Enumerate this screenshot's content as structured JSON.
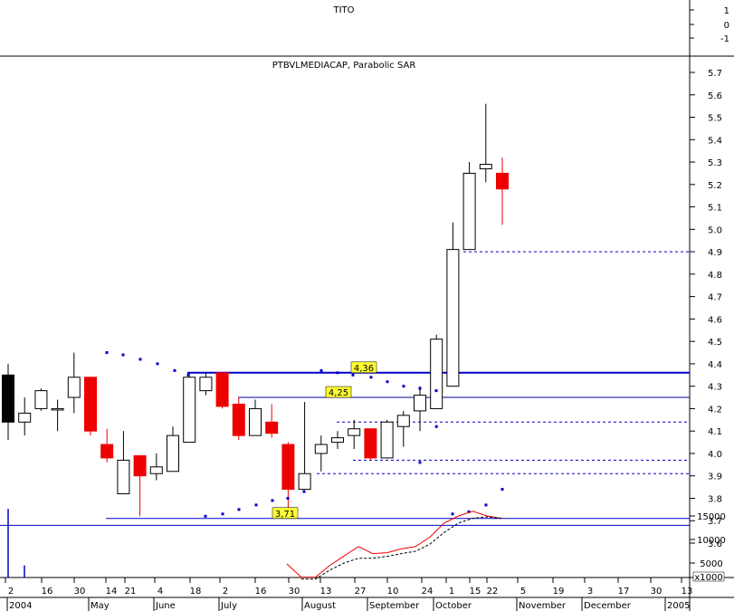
{
  "top_panel": {
    "title": "TITO",
    "axis_labels": [
      "1",
      "0",
      "-1"
    ]
  },
  "chart_data": [
    {
      "type": "candlestick",
      "title": "PTBVLMEDIACAP, Parabolic SAR",
      "ylim": [
        3.55,
        5.75
      ],
      "y_ticks": [
        "5.7",
        "5.6",
        "5.5",
        "5.4",
        "5.3",
        "5.2",
        "5.1",
        "5.0",
        "4.9",
        "4.8",
        "4.7",
        "4.6",
        "4.5",
        "4.4",
        "4.3",
        "4.2",
        "4.1",
        "4.0",
        "3.9",
        "3.8",
        "3.7",
        "3.6"
      ],
      "candles": [
        {
          "o": 4.35,
          "h": 4.4,
          "l": 4.06,
          "c": 4.14
        },
        {
          "o": 4.14,
          "h": 4.25,
          "l": 4.08,
          "c": 4.18
        },
        {
          "o": 4.2,
          "h": 4.29,
          "l": 4.19,
          "c": 4.28
        },
        {
          "o": 4.2,
          "h": 4.24,
          "l": 4.1,
          "c": 4.2
        },
        {
          "o": 4.25,
          "h": 4.45,
          "l": 4.18,
          "c": 4.34
        },
        {
          "o": 4.34,
          "h": 4.34,
          "l": 4.08,
          "c": 4.1
        },
        {
          "o": 4.04,
          "h": 4.11,
          "l": 3.96,
          "c": 3.98
        },
        {
          "o": 3.82,
          "h": 4.1,
          "l": 3.82,
          "c": 3.97
        },
        {
          "o": 3.99,
          "h": 3.99,
          "l": 3.72,
          "c": 3.9
        },
        {
          "o": 3.91,
          "h": 4.0,
          "l": 3.88,
          "c": 3.94
        },
        {
          "o": 3.92,
          "h": 4.12,
          "l": 3.92,
          "c": 4.08
        },
        {
          "o": 4.05,
          "h": 4.36,
          "l": 4.05,
          "c": 4.34
        },
        {
          "o": 4.28,
          "h": 4.36,
          "l": 4.26,
          "c": 4.34
        },
        {
          "o": 4.36,
          "h": 4.36,
          "l": 4.2,
          "c": 4.21
        },
        {
          "o": 4.22,
          "h": 4.25,
          "l": 4.06,
          "c": 4.08
        },
        {
          "o": 4.08,
          "h": 4.24,
          "l": 4.08,
          "c": 4.2
        },
        {
          "o": 4.14,
          "h": 4.22,
          "l": 4.07,
          "c": 4.09
        },
        {
          "o": 4.04,
          "h": 4.05,
          "l": 3.74,
          "c": 3.84
        },
        {
          "o": 3.84,
          "h": 4.23,
          "l": 3.84,
          "c": 3.91
        },
        {
          "o": 4.0,
          "h": 4.08,
          "l": 3.92,
          "c": 4.04
        },
        {
          "o": 4.05,
          "h": 4.1,
          "l": 4.02,
          "c": 4.07
        },
        {
          "o": 4.08,
          "h": 4.15,
          "l": 4.02,
          "c": 4.11
        },
        {
          "o": 4.11,
          "h": 4.11,
          "l": 3.97,
          "c": 3.98
        },
        {
          "o": 3.98,
          "h": 4.15,
          "l": 3.98,
          "c": 4.14
        },
        {
          "o": 4.12,
          "h": 4.19,
          "l": 4.03,
          "c": 4.17
        },
        {
          "o": 4.19,
          "h": 4.3,
          "l": 4.1,
          "c": 4.26
        },
        {
          "o": 4.2,
          "h": 4.53,
          "l": 4.2,
          "c": 4.51
        },
        {
          "o": 4.3,
          "h": 5.03,
          "l": 4.3,
          "c": 4.91
        },
        {
          "o": 4.91,
          "h": 5.3,
          "l": 4.91,
          "c": 5.25
        },
        {
          "o": 5.27,
          "h": 5.56,
          "l": 5.21,
          "c": 5.29
        },
        {
          "o": 5.25,
          "h": 5.32,
          "l": 5.02,
          "c": 5.18
        }
      ],
      "parabolic_sar": [
        4.45,
        4.44,
        4.42,
        4.4,
        4.37,
        4.35,
        3.72,
        3.73,
        3.75,
        3.77,
        3.79,
        3.8,
        3.83,
        4.37,
        4.36,
        4.35,
        4.34,
        4.32,
        4.3,
        4.29,
        4.28,
        3.73,
        3.74,
        3.77,
        3.84,
        3.96,
        4.12
      ],
      "levels": [
        {
          "value": 4.36,
          "label": "4,36",
          "style": "solid",
          "color": "#0000cc"
        },
        {
          "value": 4.25,
          "label": "4,25",
          "style": "solid",
          "color": "#000099"
        },
        {
          "value": 3.71,
          "label": "3,71",
          "style": "solid",
          "color": "#0000cc"
        },
        {
          "value": 4.9,
          "label": "",
          "style": "dashed",
          "color": "#0000cc"
        },
        {
          "value": 4.14,
          "label": "",
          "style": "dashed",
          "color": "#0000cc"
        },
        {
          "value": 3.97,
          "label": "",
          "style": "dashed",
          "color": "#0000cc"
        },
        {
          "value": 3.91,
          "label": "",
          "style": "dashed",
          "color": "#0000cc"
        }
      ]
    },
    {
      "type": "line",
      "panel": "volume",
      "y_ticks": [
        "15000",
        "10000",
        "5000"
      ],
      "unit_label": "x1000",
      "hline": 13000,
      "series": [
        {
          "values": [
            4800,
            2000,
            2000,
            4500,
            6500,
            8500,
            7000,
            7200,
            8000,
            8500,
            10500,
            13500,
            15000,
            16000,
            15000,
            14500
          ]
        },
        {
          "values": [
            null,
            1600,
            1600,
            3500,
            5000,
            6000,
            6000,
            6400,
            7000,
            7500,
            9000,
            11500,
            13500,
            14500,
            14800,
            14500
          ]
        }
      ],
      "volume_spikes": [
        16500,
        4500
      ]
    }
  ],
  "x_axis": {
    "day_labels": [
      "2",
      "16",
      "30",
      "14",
      "21",
      "4",
      "18",
      "2",
      "16",
      "30",
      "13",
      "27",
      "10",
      "24",
      "1",
      "15",
      "22",
      "5",
      "19",
      "3",
      "17",
      "30",
      "13"
    ],
    "month_labels": [
      "2004",
      "May",
      "June",
      "July",
      "August",
      "September",
      "October",
      "November",
      "December",
      "2005"
    ]
  },
  "colors": {
    "up": "#ffffff",
    "down": "#ee0000",
    "black_candle": "#000000",
    "sar": "#0000cc",
    "line_red": "#ee0000",
    "line_black": "#000000"
  }
}
